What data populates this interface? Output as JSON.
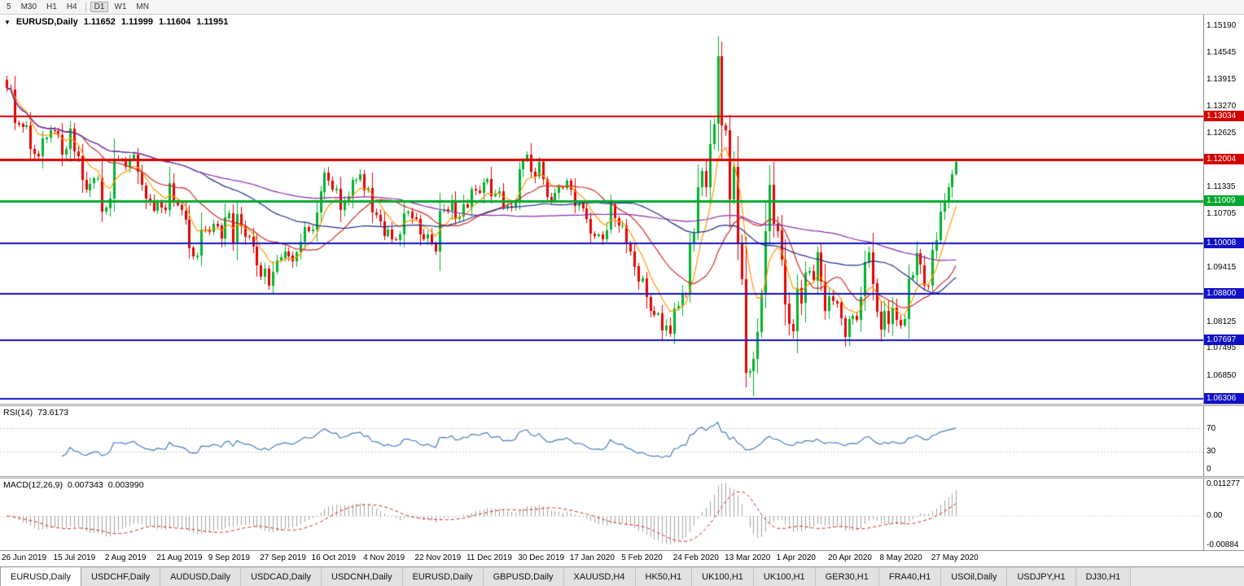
{
  "toolbar": {
    "timeframes": [
      "5",
      "M30",
      "H1",
      "H4",
      "D1",
      "W1",
      "MN"
    ],
    "active": "D1"
  },
  "chart": {
    "title": {
      "symbol": "EURUSD,Daily",
      "open": "1.11652",
      "high": "1.11999",
      "low": "1.11604",
      "close": "1.11951"
    },
    "axis_labels": [
      "1.15190",
      "1.14545",
      "1.13915",
      "1.13270",
      "1.12625",
      "1.11335",
      "1.10705",
      "1.09415",
      "1.08125",
      "1.07495",
      "1.06850"
    ],
    "hlines": [
      {
        "price": 1.13034,
        "label": "1.13034",
        "color": "#D40000",
        "width": 2
      },
      {
        "price": 1.12004,
        "label": "1.12004",
        "color": "#D40000",
        "width": 3
      },
      {
        "price": 1.11009,
        "label": "1.11009",
        "color": "#00A82D",
        "width": 3
      },
      {
        "price": 1.10008,
        "label": "1.10008",
        "color": "#1010C8",
        "width": 2
      },
      {
        "price": 1.088,
        "label": "1.08800",
        "color": "#1010C8",
        "width": 2
      },
      {
        "price": 1.07697,
        "label": "1.07697",
        "color": "#1010C8",
        "width": 2
      },
      {
        "price": 1.06306,
        "label": "1.06306",
        "color": "#1010C8",
        "width": 2
      }
    ],
    "date_labels": [
      "26 Jun 2019",
      "15 Jul 2019",
      "2 Aug 2019",
      "21 Aug 2019",
      "9 Sep 2019",
      "27 Sep 2019",
      "16 Oct 2019",
      "4 Nov 2019",
      "22 Nov 2019",
      "11 Dec 2019",
      "30 Dec 2019",
      "17 Jan 2020",
      "5 Feb 2020",
      "24 Feb 2020",
      "13 Mar 2020",
      "1 Apr 2020",
      "20 Apr 2020",
      "8 May 2020",
      "27 May 2020"
    ]
  },
  "rsi": {
    "label": "RSI(14)",
    "value": "73.6173",
    "axis_labels": [
      "70",
      "30",
      "0"
    ],
    "levels": [
      70,
      30
    ]
  },
  "macd": {
    "label": "MACD(12,26,9)",
    "value_main": "0.007343",
    "value_signal": "0.003990",
    "axis_labels": [
      "0.011277",
      "0.00",
      "-0.00884"
    ]
  },
  "tabs": [
    "EURUSD,Daily",
    "USDCHF,Daily",
    "AUDUSD,Daily",
    "USDCAD,Daily",
    "USDCNH,Daily",
    "EURUSD,Daily",
    "GBPUSD,Daily",
    "XAUUSD,H4",
    "HK50,H1",
    "UK100,H1",
    "UK100,H1",
    "GER30,H1",
    "FRA40,H1",
    "USOil,Daily",
    "USDJPY,H1",
    "DJ30,H1"
  ],
  "active_tab_index": 0,
  "colors": {
    "bull": "#00B22D",
    "bear": "#E60000",
    "rsi_line": "#4A7EBB",
    "macd_hist": "#A6A6A6",
    "macd_signal": "#DD2222",
    "level_dash": "#C8C8C8"
  },
  "chart_data": {
    "type": "candlestick",
    "symbol": "EURUSD",
    "timeframe": "Daily",
    "title": "EURUSD,Daily 1.11652 1.11999 1.11604 1.11951",
    "x_range": [
      "26 Jun 2019",
      "4 Jun 2020"
    ],
    "price_range": [
      1.0622,
      1.1542
    ],
    "open_first": 1.139,
    "closes": [
      1.137,
      1.1368,
      1.1288,
      1.1285,
      1.1278,
      1.1282,
      1.1226,
      1.1214,
      1.1208,
      1.125,
      1.1253,
      1.127,
      1.1268,
      1.1258,
      1.1212,
      1.1226,
      1.1274,
      1.122,
      1.1208,
      1.1152,
      1.1128,
      1.1143,
      1.1155,
      1.1156,
      1.1076,
      1.1085,
      1.1108,
      1.1201,
      1.12,
      1.1198,
      1.1183,
      1.12,
      1.1212,
      1.1171,
      1.1139,
      1.1108,
      1.1098,
      1.1078,
      1.1098,
      1.1086,
      1.1081,
      1.1145,
      1.1101,
      1.1091,
      1.1079,
      1.1057,
      1.099,
      1.0969,
      1.0972,
      1.1034,
      1.1033,
      1.1028,
      1.1048,
      1.1043,
      1.1011,
      1.1062,
      1.1073,
      1.1003,
      1.1071,
      1.1042,
      1.1017,
      1.1016,
      1.0993,
      1.0948,
      1.0921,
      1.094,
      1.0899,
      1.0932,
      1.0959,
      1.0967,
      1.0982,
      1.0971,
      1.0957,
      1.0979,
      1.1005,
      1.104,
      1.103,
      1.1033,
      1.1074,
      1.1124,
      1.117,
      1.115,
      1.1128,
      1.1131,
      1.108,
      1.11,
      1.1113,
      1.1151,
      1.1152,
      1.1166,
      1.1127,
      1.1132,
      1.1074,
      1.1068,
      1.1052,
      1.1018,
      1.1033,
      1.101,
      1.1009,
      1.1022,
      1.1073,
      1.1077,
      1.1062,
      1.1058,
      1.1022,
      1.1011,
      1.1021,
      1.1,
      1.0981,
      1.1078,
      1.1082,
      1.1077,
      1.1103,
      1.1059,
      1.1064,
      1.1093,
      1.1086,
      1.113,
      1.1126,
      1.112,
      1.1146,
      1.1153,
      1.1113,
      1.1119,
      1.1124,
      1.1086,
      1.109,
      1.1087,
      1.1097,
      1.1177,
      1.1199,
      1.1212,
      1.1172,
      1.116,
      1.1194,
      1.1153,
      1.1111,
      1.1103,
      1.1121,
      1.1134,
      1.1132,
      1.115,
      1.1128,
      1.109,
      1.1095,
      1.1084,
      1.1059,
      1.1024,
      1.1019,
      1.1022,
      1.1011,
      1.1032,
      1.1093,
      1.106,
      1.1043,
      1.1044,
      1.0999,
      1.0982,
      1.0946,
      1.091,
      1.0917,
      1.0873,
      1.084,
      1.0831,
      1.0834,
      1.0793,
      1.0805,
      1.0785,
      1.0846,
      1.0851,
      1.0881,
      1.088,
      1.1002,
      1.1026,
      1.1134,
      1.1173,
      1.1135,
      1.1238,
      1.1284,
      1.1446,
      1.1281,
      1.127,
      1.1105,
      1.1182,
      1.1,
      1.0915,
      1.0692,
      1.0695,
      1.0725,
      1.0789,
      1.088,
      1.103,
      1.1141,
      1.1048,
      1.1031,
      1.0962,
      1.0856,
      1.0808,
      1.0791,
      1.0894,
      1.0858,
      1.093,
      1.0934,
      1.0912,
      1.098,
      1.091,
      1.084,
      1.0875,
      1.0863,
      1.0858,
      1.0821,
      1.0777,
      1.082,
      1.0828,
      1.0818,
      1.0873,
      1.0955,
      1.098,
      1.0905,
      1.0837,
      1.0795,
      1.0839,
      1.0808,
      1.0847,
      1.0818,
      1.0805,
      1.082,
      1.0916,
      1.0924,
      1.0977,
      1.0949,
      1.09,
      1.0898,
      1.0984,
      1.1009,
      1.1076,
      1.1102,
      1.1134,
      1.11652,
      1.11951
    ],
    "wick_overrides": {
      "0": {
        "high": 1.14
      },
      "27": {
        "high": 1.125
      },
      "67": {
        "low": 1.0879
      },
      "167": {
        "low": 1.0778
      },
      "179": {
        "high": 1.1495
      },
      "186": {
        "low": 1.0656
      },
      "188": {
        "low": 1.0636
      },
      "211": {
        "low": 1.0754
      },
      "220": {
        "low": 1.0767
      },
      "239": {
        "high": 1.11999,
        "low": 1.11604
      }
    },
    "indicators": {
      "rsi": {
        "period": 14,
        "current": 73.6173
      },
      "macd": {
        "fast": 12,
        "slow": 26,
        "signal": 9,
        "current_main": 0.007343,
        "current_signal": 0.00399
      },
      "moving_averages": [
        {
          "period": 8,
          "type": "ema",
          "color": "#FF9900"
        },
        {
          "period": 20,
          "type": "sma",
          "color": "#CC2A2A"
        },
        {
          "period": 50,
          "type": "sma",
          "color": "#1F2D86"
        },
        {
          "period": 100,
          "type": "sma",
          "color": "#8A2BA6"
        }
      ]
    }
  }
}
